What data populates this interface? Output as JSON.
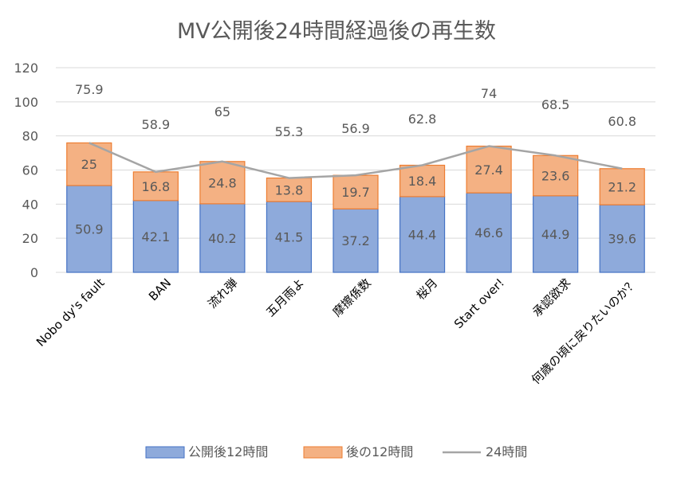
{
  "chart_data": {
    "type": "bar",
    "stacked": true,
    "title": "MV公開後24時間経過後の再生数",
    "categories": [
      "Nobo dy's fault",
      "BAN",
      "流れ弾",
      "五月雨よ",
      "摩擦係数",
      "桜月",
      "Start over!",
      "承認欲求",
      "何歳の頃に戻りたいのか？"
    ],
    "series": [
      {
        "name": "公開後12時間",
        "kind": "bar",
        "color": "#8eaadb",
        "values": [
          50.9,
          42.1,
          40.2,
          41.5,
          37.2,
          44.4,
          46.6,
          44.9,
          39.6
        ]
      },
      {
        "name": "後の12時間",
        "kind": "bar",
        "color": "#f4b183",
        "values": [
          25,
          16.8,
          24.8,
          13.8,
          19.7,
          18.4,
          27.4,
          23.6,
          21.2
        ]
      },
      {
        "name": "24時間",
        "kind": "line",
        "color": "#a5a5a5",
        "values": [
          75.9,
          58.9,
          65,
          55.3,
          56.9,
          62.8,
          74,
          68.5,
          60.8
        ]
      }
    ],
    "total_labels": [
      "75.9",
      "58.9",
      "65",
      "55.3",
      "56.9",
      "62.8",
      "74",
      "68.5",
      "60.8"
    ],
    "yticks": [
      "0",
      "20",
      "40",
      "60",
      "80",
      "100",
      "120"
    ],
    "ylim": [
      0,
      120
    ],
    "grid": true,
    "legend": "bottom"
  }
}
